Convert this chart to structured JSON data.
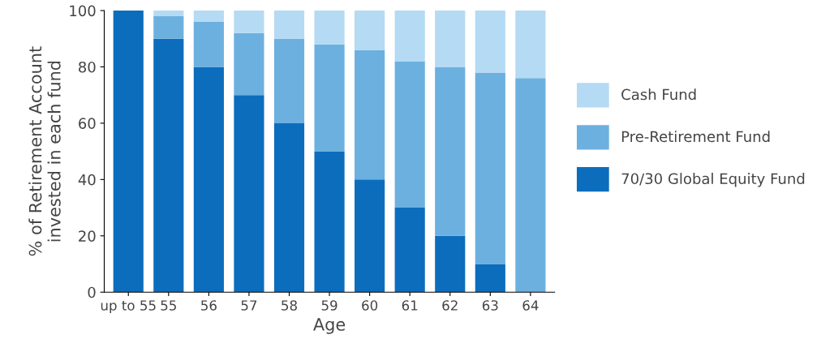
{
  "chart_data": {
    "type": "bar",
    "stacked": true,
    "xlabel": "Age",
    "ylabel": "% of Retirement Account\ninvested in each fund",
    "categories": [
      "up to 55",
      "55",
      "56",
      "57",
      "58",
      "59",
      "60",
      "61",
      "62",
      "63",
      "64"
    ],
    "series": [
      {
        "name": "70/30 Global Equity Fund",
        "color": "#0c6dbd",
        "values": [
          100,
          90,
          80,
          70,
          60,
          50,
          40,
          30,
          20,
          10,
          0
        ]
      },
      {
        "name": "Pre-Retirement Fund",
        "color": "#6cb0df",
        "values": [
          0,
          8,
          16,
          22,
          30,
          38,
          46,
          52,
          60,
          68,
          76
        ]
      },
      {
        "name": "Cash Fund",
        "color": "#b5daf3",
        "values": [
          0,
          2,
          4,
          8,
          10,
          12,
          14,
          18,
          20,
          22,
          24
        ]
      }
    ],
    "ylim": [
      0,
      100
    ],
    "yticks": [
      0,
      20,
      40,
      60,
      80,
      100
    ],
    "grid": false,
    "legend": "right"
  }
}
